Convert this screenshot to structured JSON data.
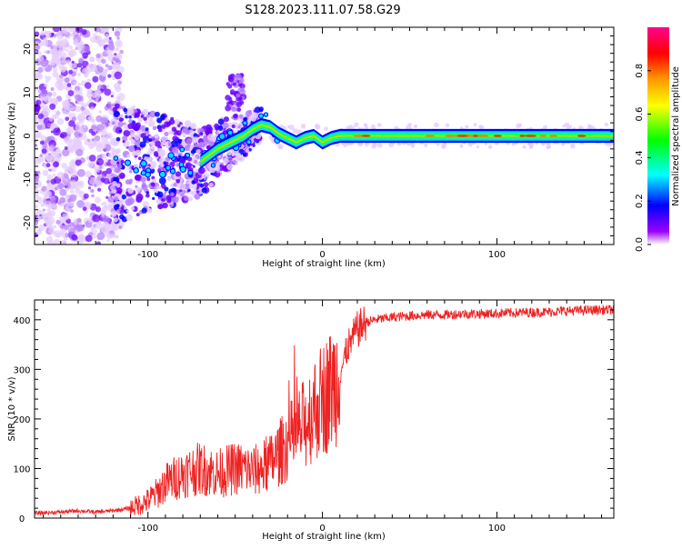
{
  "title": "S128.2023.111.07.58.G29",
  "chart_data": [
    {
      "type": "heatmap",
      "xlabel": "Height of straight line (km)",
      "ylabel": "Frequency (Hz)",
      "xlim": [
        -165,
        167
      ],
      "ylim": [
        -25,
        25
      ],
      "x_ticks": [
        -100,
        0,
        100
      ],
      "y_ticks": [
        -20,
        -10,
        0,
        10,
        20
      ],
      "colorbar": {
        "label": "Normalized spectral amplitude",
        "range": [
          0,
          1
        ],
        "ticks": [
          "0.0",
          "0.2",
          "0.4",
          "0.6",
          "0.8"
        ],
        "colors": [
          "#ffffff",
          "#9b00ff",
          "#0000ff",
          "#00ffff",
          "#00ff00",
          "#ffff00",
          "#ff9900",
          "#ff0000",
          "#ff0090"
        ]
      },
      "ridge": {
        "x": [
          -70,
          -60,
          -50,
          -45,
          -40,
          -35,
          -30,
          -25,
          -20,
          -15,
          -10,
          -5,
          0,
          5,
          10,
          20,
          40,
          60,
          80,
          100,
          120,
          140,
          167
        ],
        "frequency": [
          -6,
          -3,
          -1,
          0,
          1.5,
          2.5,
          2,
          0.5,
          -0.5,
          -1.5,
          -0.5,
          0,
          -1.5,
          -0.5,
          0,
          0,
          0,
          0,
          0,
          0,
          0,
          0,
          0
        ]
      }
    },
    {
      "type": "line",
      "xlabel": "Height of straight line (km)",
      "ylabel": "SNR (10 * v/v)",
      "xlim": [
        -165,
        167
      ],
      "ylim": [
        0,
        440
      ],
      "x_ticks": [
        -100,
        0,
        100
      ],
      "y_ticks": [
        0,
        100,
        200,
        300,
        400
      ],
      "series": [
        {
          "color": "#ee2222",
          "x": [
            -165,
            -150,
            -140,
            -130,
            -120,
            -110,
            -100,
            -95,
            -90,
            -85,
            -80,
            -75,
            -70,
            -65,
            -60,
            -55,
            -50,
            -45,
            -40,
            -35,
            -30,
            -25,
            -20,
            -15,
            -10,
            -5,
            0,
            5,
            10,
            15,
            20,
            25,
            30,
            40,
            50,
            60,
            70,
            80,
            90,
            100,
            110,
            120,
            130,
            140,
            150,
            160,
            167
          ],
          "y": [
            10,
            12,
            15,
            12,
            15,
            20,
            35,
            50,
            70,
            80,
            90,
            95,
            100,
            95,
            90,
            95,
            100,
            100,
            95,
            100,
            110,
            130,
            150,
            170,
            190,
            220,
            240,
            260,
            290,
            350,
            380,
            395,
            400,
            405,
            408,
            410,
            410,
            412,
            412,
            413,
            414,
            415,
            416,
            418,
            419,
            420,
            420
          ]
        }
      ]
    }
  ]
}
